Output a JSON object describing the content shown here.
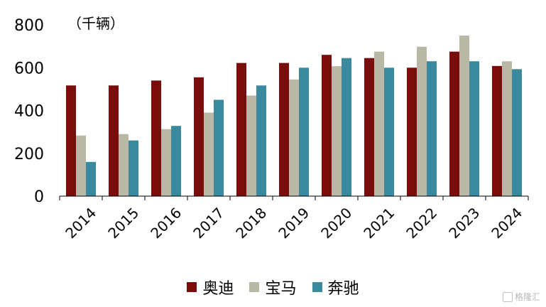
{
  "chart_data": {
    "type": "bar",
    "unit_label": "（千辆）",
    "categories": [
      "2014",
      "2015",
      "2016",
      "2017",
      "2018",
      "2019",
      "2020",
      "2021",
      "2022",
      "2023",
      "2024"
    ],
    "series": [
      {
        "name": "奥迪",
        "color": "#7a0c0c",
        "values": [
          517,
          517,
          540,
          555,
          622,
          622,
          660,
          645,
          600,
          675,
          608
        ]
      },
      {
        "name": "宝马",
        "color": "#b9b8a7",
        "values": [
          283,
          290,
          313,
          390,
          470,
          545,
          607,
          675,
          698,
          750,
          630
        ]
      },
      {
        "name": "奔驰",
        "color": "#3a8a9e",
        "values": [
          160,
          260,
          328,
          450,
          517,
          600,
          645,
          600,
          630,
          630,
          593
        ]
      }
    ],
    "y_ticks": [
      0,
      200,
      400,
      600,
      800
    ],
    "ylim": [
      0,
      800
    ],
    "grid": false,
    "legend_position": "bottom"
  },
  "watermark": {
    "text": "格隆汇"
  }
}
